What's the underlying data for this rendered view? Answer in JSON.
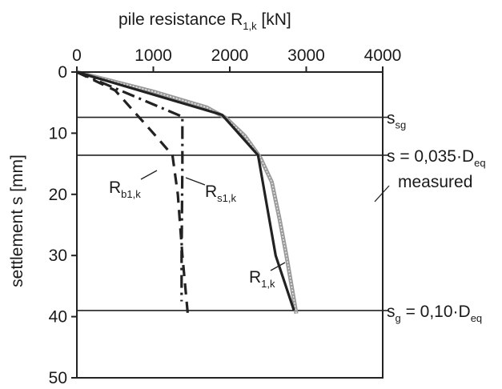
{
  "chart_data": {
    "type": "line",
    "x_axis": {
      "label_main": "pile resistance R",
      "label_sub": "1,k",
      "label_unit": " [kN]",
      "position": "top",
      "range": [
        0,
        4000
      ],
      "ticks": [
        0,
        1000,
        2000,
        3000,
        4000
      ],
      "tick_labels": [
        "0",
        "1000",
        "2000",
        "3000",
        "4000"
      ]
    },
    "y_axis": {
      "label": "settlement s [mm]",
      "inverted": true,
      "range": [
        0,
        50
      ],
      "ticks": [
        0,
        10,
        20,
        30,
        40,
        50
      ],
      "tick_labels": [
        "0",
        "10",
        "20",
        "30",
        "40",
        "50"
      ]
    },
    "grid": false,
    "series": [
      {
        "key": "measured",
        "name": "measured",
        "style": "solid-grey-hatched",
        "color": "#9a9a9a",
        "points": [
          [
            0,
            0
          ],
          [
            1000,
            3.2
          ],
          [
            1700,
            5.8
          ],
          [
            1950,
            7.5
          ],
          [
            2200,
            10.5
          ],
          [
            2400,
            14
          ],
          [
            2550,
            18
          ],
          [
            2650,
            24
          ],
          [
            2740,
            30
          ],
          [
            2870,
            39.5
          ]
        ]
      },
      {
        "key": "R1k",
        "name": "R1,k",
        "style": "solid",
        "color": "#222222",
        "points": [
          [
            0,
            0
          ],
          [
            1900,
            7
          ],
          [
            2370,
            13.6
          ],
          [
            2600,
            30
          ],
          [
            2840,
            39
          ]
        ]
      },
      {
        "key": "Rs1k",
        "name": "Rs1,k",
        "style": "dash-dot",
        "color": "#222222",
        "points": [
          [
            0,
            0
          ],
          [
            1380,
            7.3
          ],
          [
            1380,
            15
          ],
          [
            1370,
            30
          ],
          [
            1370,
            37.5
          ]
        ]
      },
      {
        "key": "Rb1k",
        "name": "Rb1,k",
        "style": "dashed",
        "color": "#222222",
        "points": [
          [
            0,
            0
          ],
          [
            500,
            3
          ],
          [
            1000,
            10
          ],
          [
            1250,
            13.6
          ],
          [
            1320,
            20
          ],
          [
            1380,
            30
          ],
          [
            1450,
            39.5
          ]
        ]
      }
    ],
    "horizontal_lines": [
      {
        "key": "ssg",
        "y": 7.4,
        "label_main": "s",
        "label_sub": "sg",
        "label_rest": ""
      },
      {
        "key": "s035",
        "y": 13.6,
        "label_main": "s = 0,035·D",
        "label_sub": "eq",
        "label_rest": ""
      },
      {
        "key": "sg",
        "y": 39,
        "label_main": "s",
        "label_sub": "g",
        "label_rest": " = 0,10·D",
        "label_sub2": "eq"
      }
    ],
    "annotations": [
      {
        "key": "measured",
        "main": "measured",
        "sub": ""
      },
      {
        "key": "R1k",
        "main": "R",
        "sub": "1,k"
      },
      {
        "key": "Rs1k",
        "main": "R",
        "sub": "s1,k"
      },
      {
        "key": "Rb1k",
        "main": "R",
        "sub": "b1,k"
      }
    ]
  }
}
